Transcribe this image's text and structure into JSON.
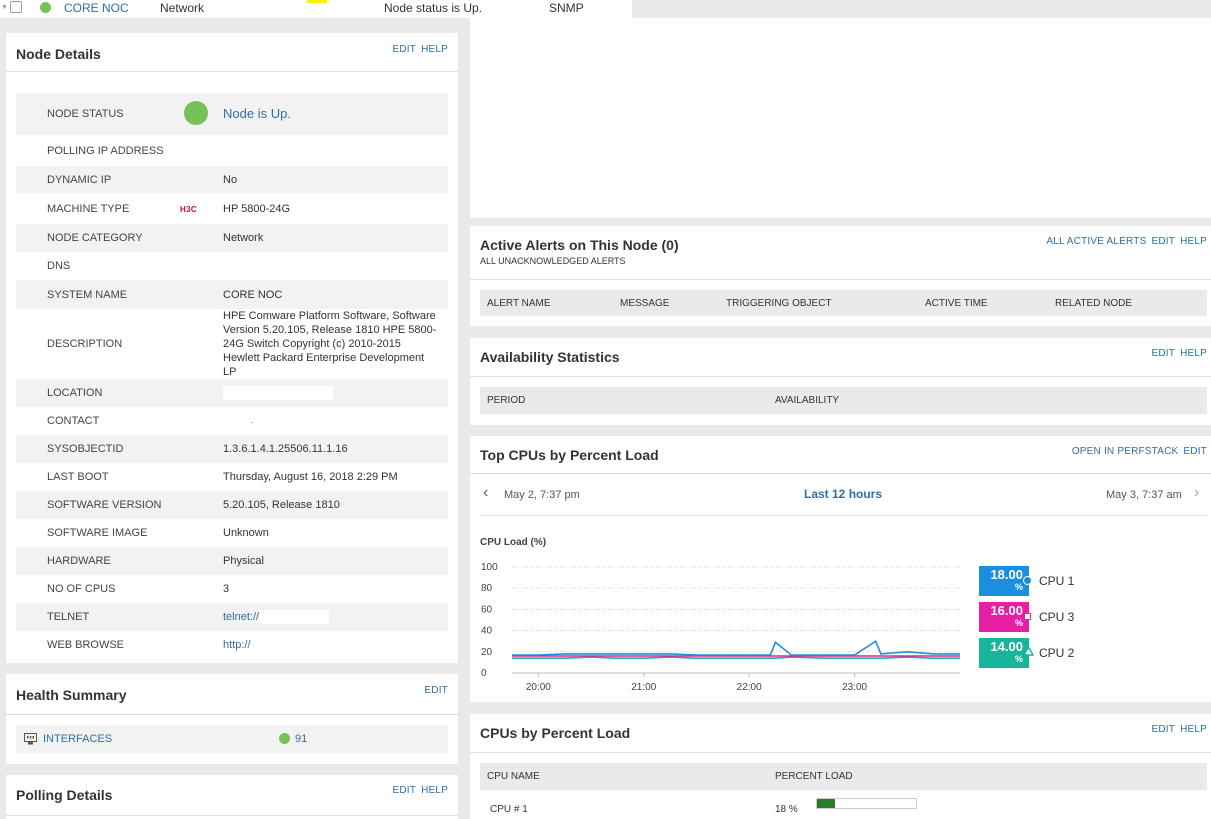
{
  "top_row": {
    "node_name": "CORE NOC",
    "category": "Network",
    "status": "Node status is Up.",
    "polling": "SNMP"
  },
  "node_details": {
    "title": "Node Details",
    "edit": "EDIT",
    "help": "HELP",
    "rows": [
      {
        "label": "NODE STATUS",
        "value": "Node is Up."
      },
      {
        "label": "POLLING IP ADDRESS",
        "value": ""
      },
      {
        "label": "DYNAMIC IP",
        "value": "No"
      },
      {
        "label": "MACHINE TYPE",
        "value": "HP 5800-24G",
        "vendor": "H3C"
      },
      {
        "label": "NODE CATEGORY",
        "value": "Network"
      },
      {
        "label": "DNS",
        "value": ""
      },
      {
        "label": "SYSTEM NAME",
        "value": "CORE NOC"
      },
      {
        "label": "DESCRIPTION",
        "value": "HPE Comware Platform Software, Software Version 5.20.105, Release 1810 HPE 5800-24G Switch Copyright (c) 2010-2015 Hewlett Packard Enterprise Development LP"
      },
      {
        "label": "LOCATION",
        "value": ""
      },
      {
        "label": "CONTACT",
        "value": "."
      },
      {
        "label": "SYSOBJECTID",
        "value": "1.3.6.1.4.1.25506.11.1.16"
      },
      {
        "label": "LAST BOOT",
        "value": "Thursday, August 16, 2018 2:29 PM"
      },
      {
        "label": "SOFTWARE VERSION",
        "value": "5.20.105, Release 1810"
      },
      {
        "label": "SOFTWARE IMAGE",
        "value": "Unknown"
      },
      {
        "label": "HARDWARE",
        "value": "Physical"
      },
      {
        "label": "NO OF CPUS",
        "value": "3"
      },
      {
        "label": "TELNET",
        "value": "telnet://"
      },
      {
        "label": "WEB BROWSE",
        "value": "http://"
      }
    ]
  },
  "health_summary": {
    "title": "Health Summary",
    "edit": "EDIT",
    "interfaces_label": "INTERFACES",
    "interfaces_count": "91"
  },
  "polling_details": {
    "title": "Polling Details",
    "edit": "EDIT",
    "help": "HELP"
  },
  "active_alerts": {
    "title": "Active Alerts on This Node (0)",
    "subtitle": "ALL UNACKNOWLEDGED ALERTS",
    "all_link": "ALL ACTIVE ALERTS",
    "edit": "EDIT",
    "help": "HELP",
    "columns": [
      "ALERT NAME",
      "MESSAGE",
      "TRIGGERING OBJECT",
      "ACTIVE TIME",
      "RELATED NODE"
    ]
  },
  "availability": {
    "title": "Availability Statistics",
    "edit": "EDIT",
    "help": "HELP",
    "columns": [
      "PERIOD",
      "AVAILABILITY"
    ]
  },
  "top_cpus": {
    "title": "Top CPUs by Percent Load",
    "perfstack": "OPEN IN PERFSTACK",
    "edit": "EDIT",
    "range_start": "May 2, 7:37 pm",
    "range_label": "Last 12 hours",
    "range_end": "May 3, 7:37 am",
    "colors": {
      "cpu1": "#1b8fdf",
      "cpu3": "#e61fa5",
      "cpu2": "#17b69a"
    }
  },
  "chart_data": {
    "type": "line",
    "title": "",
    "ylabel": "CPU Load (%)",
    "xlabel": "",
    "ylim": [
      0,
      100
    ],
    "yticks": [
      "100",
      "80",
      "60",
      "40",
      "20",
      "0"
    ],
    "xticks": [
      "20:00",
      "21:00",
      "22:00",
      "23:00"
    ],
    "x": [
      19.75,
      20.0,
      20.25,
      20.5,
      20.75,
      21.0,
      21.25,
      21.5,
      21.75,
      22.0,
      22.2,
      22.25,
      22.4,
      22.75,
      23.0,
      23.2,
      23.25,
      23.5,
      23.75,
      24.0
    ],
    "series": [
      {
        "name": "CPU 1",
        "values": [
          17,
          17,
          18,
          18,
          18,
          18,
          18,
          17,
          17,
          17,
          17,
          29,
          17,
          17,
          17,
          30,
          18,
          20,
          18,
          18
        ],
        "legend": "18.00",
        "unit": "%"
      },
      {
        "name": "CPU 3",
        "values": [
          16,
          16,
          16,
          16,
          16,
          16,
          16,
          16,
          16,
          16,
          16,
          16,
          16,
          16,
          16,
          16,
          16,
          16,
          16,
          16
        ],
        "legend": "16.00",
        "unit": "%"
      },
      {
        "name": "CPU 2",
        "values": [
          14,
          14,
          14,
          15,
          14,
          14,
          15,
          14,
          14,
          14,
          14,
          14,
          15,
          14,
          14,
          14,
          14,
          15,
          14,
          14
        ],
        "legend": "14.00",
        "unit": "%"
      }
    ]
  },
  "cpus_load": {
    "title": "CPUs by Percent Load",
    "edit": "EDIT",
    "help": "HELP",
    "columns": [
      "CPU NAME",
      "PERCENT LOAD"
    ],
    "rows": [
      {
        "name": "CPU # 1",
        "load_text": "18 %",
        "load": 18
      }
    ]
  }
}
